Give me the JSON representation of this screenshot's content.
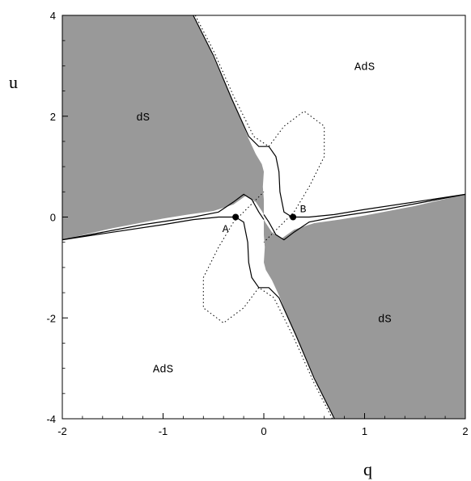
{
  "chart_data": {
    "type": "region-plot",
    "xlabel": "q",
    "ylabel": "u",
    "xlim": [
      -2,
      2
    ],
    "ylim": [
      -4,
      4
    ],
    "x_ticks": [
      -2,
      -1,
      0,
      1,
      2
    ],
    "x_tick_labels": [
      "-2",
      "-1",
      "0",
      "1",
      "2"
    ],
    "y_ticks": [
      -4,
      -2,
      0,
      2,
      4
    ],
    "y_tick_labels": [
      "-4",
      "-2",
      "0",
      "2",
      "4"
    ],
    "grid": false,
    "colors": {
      "ds_fill": "#999999",
      "curve": "#000000",
      "background": "#ffffff"
    },
    "regions": [
      {
        "label": "dS",
        "label_at": [
          -1.2,
          2.0
        ],
        "boundary": [
          [
            -2.0,
            4.0
          ],
          [
            -0.7,
            4.0
          ],
          [
            -0.55,
            3.4
          ],
          [
            -0.42,
            2.8
          ],
          [
            -0.32,
            2.35
          ],
          [
            -0.22,
            1.9
          ],
          [
            -0.15,
            1.55
          ],
          [
            -0.08,
            1.25
          ],
          [
            -0.02,
            1.05
          ],
          [
            0.0,
            0.9
          ],
          [
            -0.01,
            0.6
          ],
          [
            0.0,
            0.35
          ],
          [
            0.0,
            0.05
          ],
          [
            -0.02,
            0.12
          ],
          [
            -0.08,
            0.3
          ],
          [
            -0.18,
            0.42
          ],
          [
            -0.3,
            0.25
          ],
          [
            -0.5,
            0.12
          ],
          [
            -0.75,
            0.05
          ],
          [
            -1.0,
            -0.03
          ],
          [
            -1.5,
            -0.22
          ],
          [
            -2.0,
            -0.45
          ]
        ]
      },
      {
        "label": "dS",
        "label_at": [
          1.2,
          -2.0
        ],
        "boundary": [
          [
            2.0,
            -4.0
          ],
          [
            0.7,
            -4.0
          ],
          [
            0.55,
            -3.4
          ],
          [
            0.42,
            -2.8
          ],
          [
            0.32,
            -2.35
          ],
          [
            0.22,
            -1.9
          ],
          [
            0.15,
            -1.55
          ],
          [
            0.08,
            -1.25
          ],
          [
            0.02,
            -1.05
          ],
          [
            0.0,
            -0.9
          ],
          [
            0.01,
            -0.6
          ],
          [
            0.0,
            -0.35
          ],
          [
            0.0,
            -0.05
          ],
          [
            0.02,
            -0.12
          ],
          [
            0.08,
            -0.3
          ],
          [
            0.18,
            -0.42
          ],
          [
            0.3,
            -0.25
          ],
          [
            0.5,
            -0.12
          ],
          [
            0.75,
            -0.05
          ],
          [
            1.0,
            0.03
          ],
          [
            1.5,
            0.22
          ],
          [
            2.0,
            0.45
          ]
        ]
      }
    ],
    "region_labels": [
      {
        "text": "AdS",
        "at": [
          1.0,
          3.0
        ]
      },
      {
        "text": "AdS",
        "at": [
          -1.0,
          -3.0
        ]
      }
    ],
    "solid_curves": [
      [
        [
          -0.7,
          4.0
        ],
        [
          -0.5,
          3.2
        ],
        [
          -0.32,
          2.35
        ],
        [
          -0.15,
          1.6
        ],
        [
          -0.05,
          1.4
        ],
        [
          0.05,
          1.4
        ],
        [
          0.12,
          1.2
        ],
        [
          0.15,
          0.9
        ],
        [
          0.16,
          0.5
        ],
        [
          0.2,
          0.1
        ],
        [
          0.28,
          0.0
        ]
      ],
      [
        [
          0.7,
          -4.0
        ],
        [
          0.5,
          -3.2
        ],
        [
          0.32,
          -2.35
        ],
        [
          0.15,
          -1.6
        ],
        [
          0.05,
          -1.4
        ],
        [
          -0.05,
          -1.4
        ],
        [
          -0.12,
          -1.2
        ],
        [
          -0.15,
          -0.9
        ],
        [
          -0.16,
          -0.5
        ],
        [
          -0.2,
          -0.1
        ],
        [
          -0.28,
          0.0
        ]
      ],
      [
        [
          0.28,
          0.0
        ],
        [
          0.45,
          0.0
        ],
        [
          0.7,
          0.05
        ],
        [
          1.0,
          0.15
        ],
        [
          1.5,
          0.3
        ],
        [
          2.0,
          0.45
        ]
      ],
      [
        [
          -0.28,
          0.0
        ],
        [
          -0.45,
          0.0
        ],
        [
          -0.7,
          -0.05
        ],
        [
          -1.0,
          -0.15
        ],
        [
          -1.5,
          -0.3
        ],
        [
          -2.0,
          -0.45
        ]
      ],
      [
        [
          0.0,
          0.05
        ],
        [
          0.05,
          -0.1
        ],
        [
          0.12,
          -0.35
        ],
        [
          0.2,
          -0.45
        ],
        [
          0.3,
          -0.3
        ],
        [
          0.45,
          -0.1
        ],
        [
          0.7,
          0.0
        ],
        [
          1.2,
          0.15
        ],
        [
          2.0,
          0.45
        ]
      ],
      [
        [
          0.0,
          -0.05
        ],
        [
          -0.05,
          0.1
        ],
        [
          -0.12,
          0.35
        ],
        [
          -0.2,
          0.45
        ],
        [
          -0.3,
          0.3
        ],
        [
          -0.45,
          0.1
        ],
        [
          -0.7,
          0.0
        ],
        [
          -1.2,
          -0.15
        ],
        [
          -2.0,
          -0.45
        ]
      ]
    ],
    "dotted_curves": [
      [
        [
          -0.68,
          4.0
        ],
        [
          -0.5,
          3.3
        ],
        [
          -0.3,
          2.4
        ],
        [
          -0.1,
          1.6
        ],
        [
          0.05,
          1.4
        ],
        [
          0.2,
          1.8
        ],
        [
          0.4,
          2.1
        ],
        [
          0.6,
          1.8
        ],
        [
          0.6,
          1.2
        ],
        [
          0.45,
          0.6
        ],
        [
          0.3,
          0.1
        ],
        [
          0.1,
          -0.3
        ],
        [
          0.0,
          -0.5
        ]
      ],
      [
        [
          0.68,
          -4.0
        ],
        [
          0.5,
          -3.3
        ],
        [
          0.3,
          -2.4
        ],
        [
          0.1,
          -1.6
        ],
        [
          -0.05,
          -1.4
        ],
        [
          -0.2,
          -1.8
        ],
        [
          -0.4,
          -2.1
        ],
        [
          -0.6,
          -1.8
        ],
        [
          -0.6,
          -1.2
        ],
        [
          -0.45,
          -0.6
        ],
        [
          -0.3,
          -0.1
        ],
        [
          -0.1,
          0.3
        ],
        [
          0.0,
          0.5
        ]
      ]
    ],
    "points": [
      {
        "label": "A",
        "at": [
          -0.28,
          0.0
        ],
        "label_at": [
          -0.38,
          -0.22
        ]
      },
      {
        "label": "B",
        "at": [
          0.29,
          0.0
        ],
        "label_at": [
          0.39,
          0.18
        ]
      }
    ]
  }
}
